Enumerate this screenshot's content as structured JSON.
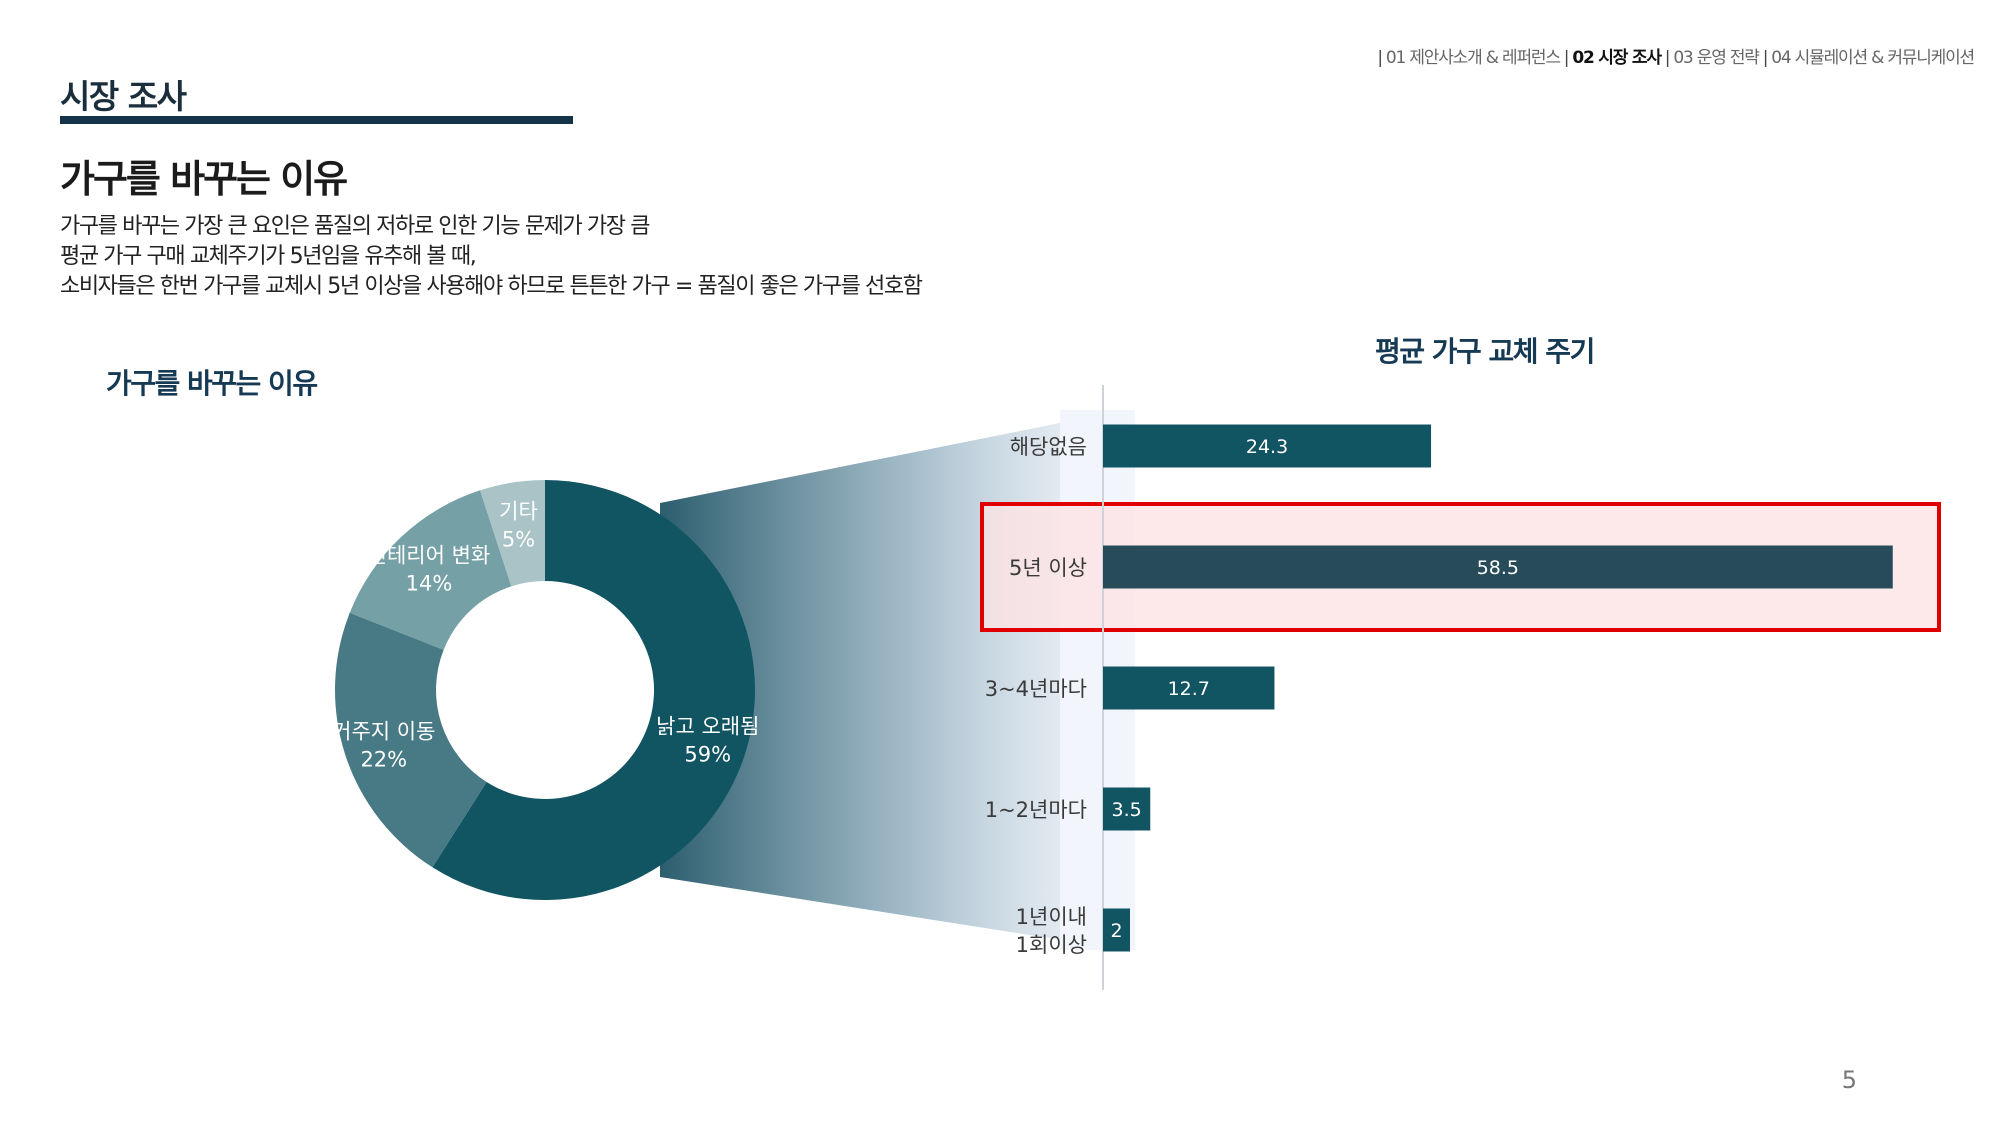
{
  "nav": {
    "items": [
      "01 제안사소개 & 레퍼런스",
      "02 시장 조사",
      "03 운영 전략",
      "04 시뮬레이션 & 커뮤니케이션"
    ],
    "active_index": 1,
    "separator": "|"
  },
  "section_title": "시장 조사",
  "headline": "가구를 바꾸는 이유",
  "description": [
    "가구를 바꾸는 가장 큰 요인은 품질의 저하로 인한 기능 문제가 가장 큼",
    "평균 가구 구매 교체주기가 5년임을 유추해 볼 때,",
    "소비자들은 한번 가구를 교체시 5년 이상을 사용해야 하므로 튼튼한 가구 = 품질이 좋은 가구를 선호함"
  ],
  "colors": {
    "accent_dark": "#153448",
    "donut": [
      "#115462",
      "#477a84",
      "#74a0a6",
      "#a9c3c6"
    ],
    "bar": "#115462",
    "bar_highlight": "#284b5a",
    "highlight_box_stroke": "#e00000",
    "highlight_box_fill": "#fde3e5"
  },
  "chart_data": [
    {
      "type": "pie",
      "title": "가구를 바꾸는 이유",
      "donut": true,
      "slices": [
        {
          "label": "낡고 오래됨",
          "value": 59,
          "display": "59%"
        },
        {
          "label": "거주지 이동",
          "value": 22,
          "display": "22%"
        },
        {
          "label": "인테리어 변화",
          "value": 14,
          "display": "14%"
        },
        {
          "label": "기타",
          "value": 5,
          "display": "5%"
        }
      ]
    },
    {
      "type": "bar",
      "orientation": "horizontal",
      "title": "평균 가구 교체 주기",
      "categories": [
        [
          "해당없음"
        ],
        [
          "5년 이상"
        ],
        [
          "3~4년마다"
        ],
        [
          "1~2년마다"
        ],
        [
          "1년이내",
          "1회이상"
        ]
      ],
      "values": [
        24.3,
        58.5,
        12.7,
        3.5,
        2
      ],
      "labels": [
        "24.3",
        "58.5",
        "12.7",
        "3.5",
        "2"
      ],
      "highlight_index": 1,
      "xlim": [
        0,
        60
      ]
    }
  ],
  "page_number": "5"
}
